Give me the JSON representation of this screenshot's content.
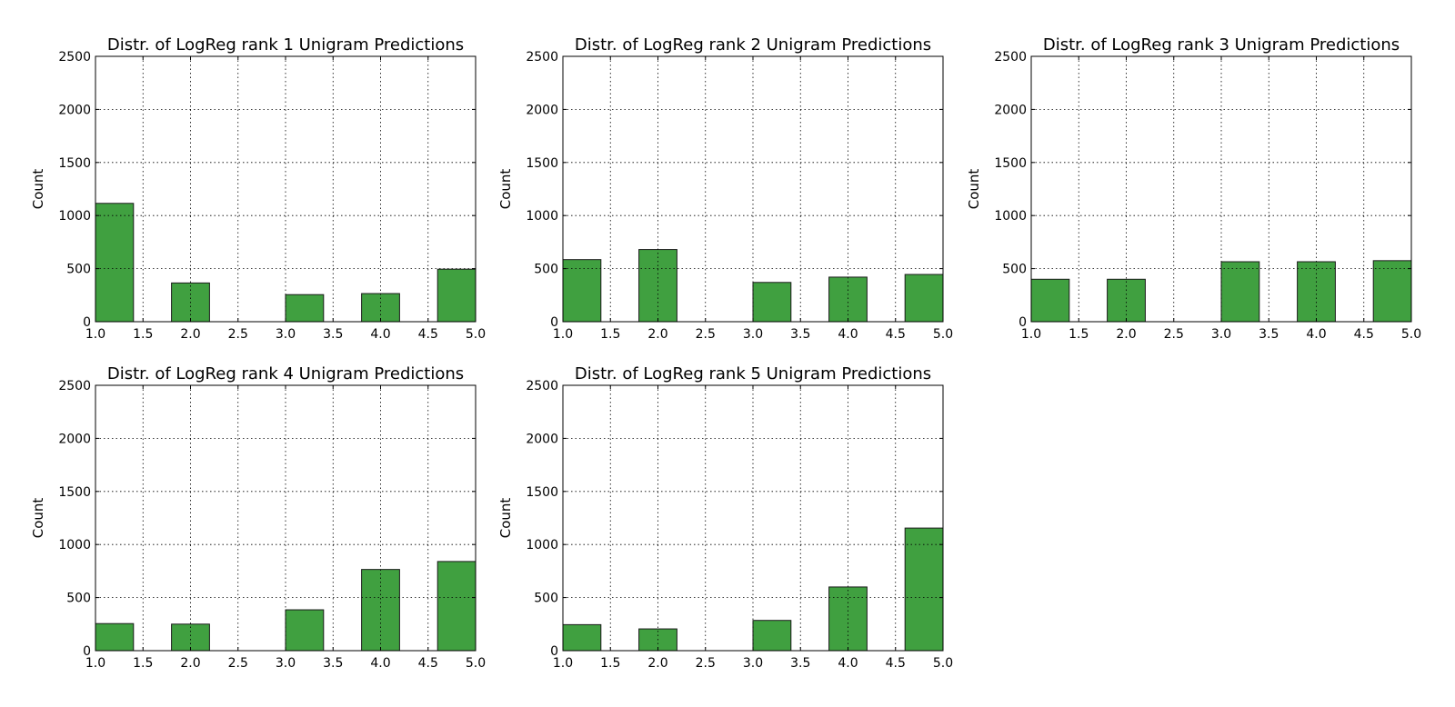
{
  "colors": {
    "bar_fill": "#40a040",
    "bar_edge": "#1a1a1a",
    "grid": "#000000",
    "background": "#ffffff"
  },
  "chart_data": [
    {
      "type": "bar",
      "title": "Distr. of LogReg rank 1 Unigram Predictions",
      "ylabel": "Count",
      "xlim": [
        1.0,
        5.0
      ],
      "ylim": [
        0,
        2500
      ],
      "xticks": [
        "1.0",
        "1.5",
        "2.0",
        "2.5",
        "3.0",
        "3.5",
        "4.0",
        "4.5",
        "5.0"
      ],
      "yticks": [
        "0",
        "500",
        "1000",
        "1500",
        "2000",
        "2500"
      ],
      "grid": true,
      "bins": [
        [
          1.0,
          1.4
        ],
        [
          1.8,
          2.2
        ],
        [
          3.0,
          3.4
        ],
        [
          3.8,
          4.2
        ],
        [
          4.6,
          5.0
        ]
      ],
      "values": [
        1115,
        365,
        255,
        265,
        495
      ]
    },
    {
      "type": "bar",
      "title": "Distr. of LogReg rank 2 Unigram Predictions",
      "ylabel": "Count",
      "xlim": [
        1.0,
        5.0
      ],
      "ylim": [
        0,
        2500
      ],
      "xticks": [
        "1.0",
        "1.5",
        "2.0",
        "2.5",
        "3.0",
        "3.5",
        "4.0",
        "4.5",
        "5.0"
      ],
      "yticks": [
        "0",
        "500",
        "1000",
        "1500",
        "2000",
        "2500"
      ],
      "grid": true,
      "bins": [
        [
          1.0,
          1.4
        ],
        [
          1.8,
          2.2
        ],
        [
          3.0,
          3.4
        ],
        [
          3.8,
          4.2
        ],
        [
          4.6,
          5.0
        ]
      ],
      "values": [
        585,
        680,
        370,
        420,
        445
      ]
    },
    {
      "type": "bar",
      "title": "Distr. of LogReg rank 3 Unigram Predictions",
      "ylabel": "Count",
      "xlim": [
        1.0,
        5.0
      ],
      "ylim": [
        0,
        2500
      ],
      "xticks": [
        "1.0",
        "1.5",
        "2.0",
        "2.5",
        "3.0",
        "3.5",
        "4.0",
        "4.5",
        "5.0"
      ],
      "yticks": [
        "0",
        "500",
        "1000",
        "1500",
        "2000",
        "2500"
      ],
      "grid": true,
      "bins": [
        [
          1.0,
          1.4
        ],
        [
          1.8,
          2.2
        ],
        [
          3.0,
          3.4
        ],
        [
          3.8,
          4.2
        ],
        [
          4.6,
          5.0
        ]
      ],
      "values": [
        400,
        400,
        565,
        565,
        575
      ]
    },
    {
      "type": "bar",
      "title": "Distr. of LogReg rank 4 Unigram Predictions",
      "ylabel": "Count",
      "xlim": [
        1.0,
        5.0
      ],
      "ylim": [
        0,
        2500
      ],
      "xticks": [
        "1.0",
        "1.5",
        "2.0",
        "2.5",
        "3.0",
        "3.5",
        "4.0",
        "4.5",
        "5.0"
      ],
      "yticks": [
        "0",
        "500",
        "1000",
        "1500",
        "2000",
        "2500"
      ],
      "grid": true,
      "bins": [
        [
          1.0,
          1.4
        ],
        [
          1.8,
          2.2
        ],
        [
          3.0,
          3.4
        ],
        [
          3.8,
          4.2
        ],
        [
          4.6,
          5.0
        ]
      ],
      "values": [
        255,
        250,
        385,
        765,
        840
      ]
    },
    {
      "type": "bar",
      "title": "Distr. of LogReg rank 5 Unigram Predictions",
      "ylabel": "Count",
      "xlim": [
        1.0,
        5.0
      ],
      "ylim": [
        0,
        2500
      ],
      "xticks": [
        "1.0",
        "1.5",
        "2.0",
        "2.5",
        "3.0",
        "3.5",
        "4.0",
        "4.5",
        "5.0"
      ],
      "yticks": [
        "0",
        "500",
        "1000",
        "1500",
        "2000",
        "2500"
      ],
      "grid": true,
      "bins": [
        [
          1.0,
          1.4
        ],
        [
          1.8,
          2.2
        ],
        [
          3.0,
          3.4
        ],
        [
          3.8,
          4.2
        ],
        [
          4.6,
          5.0
        ]
      ],
      "values": [
        245,
        205,
        285,
        600,
        1155
      ]
    }
  ]
}
